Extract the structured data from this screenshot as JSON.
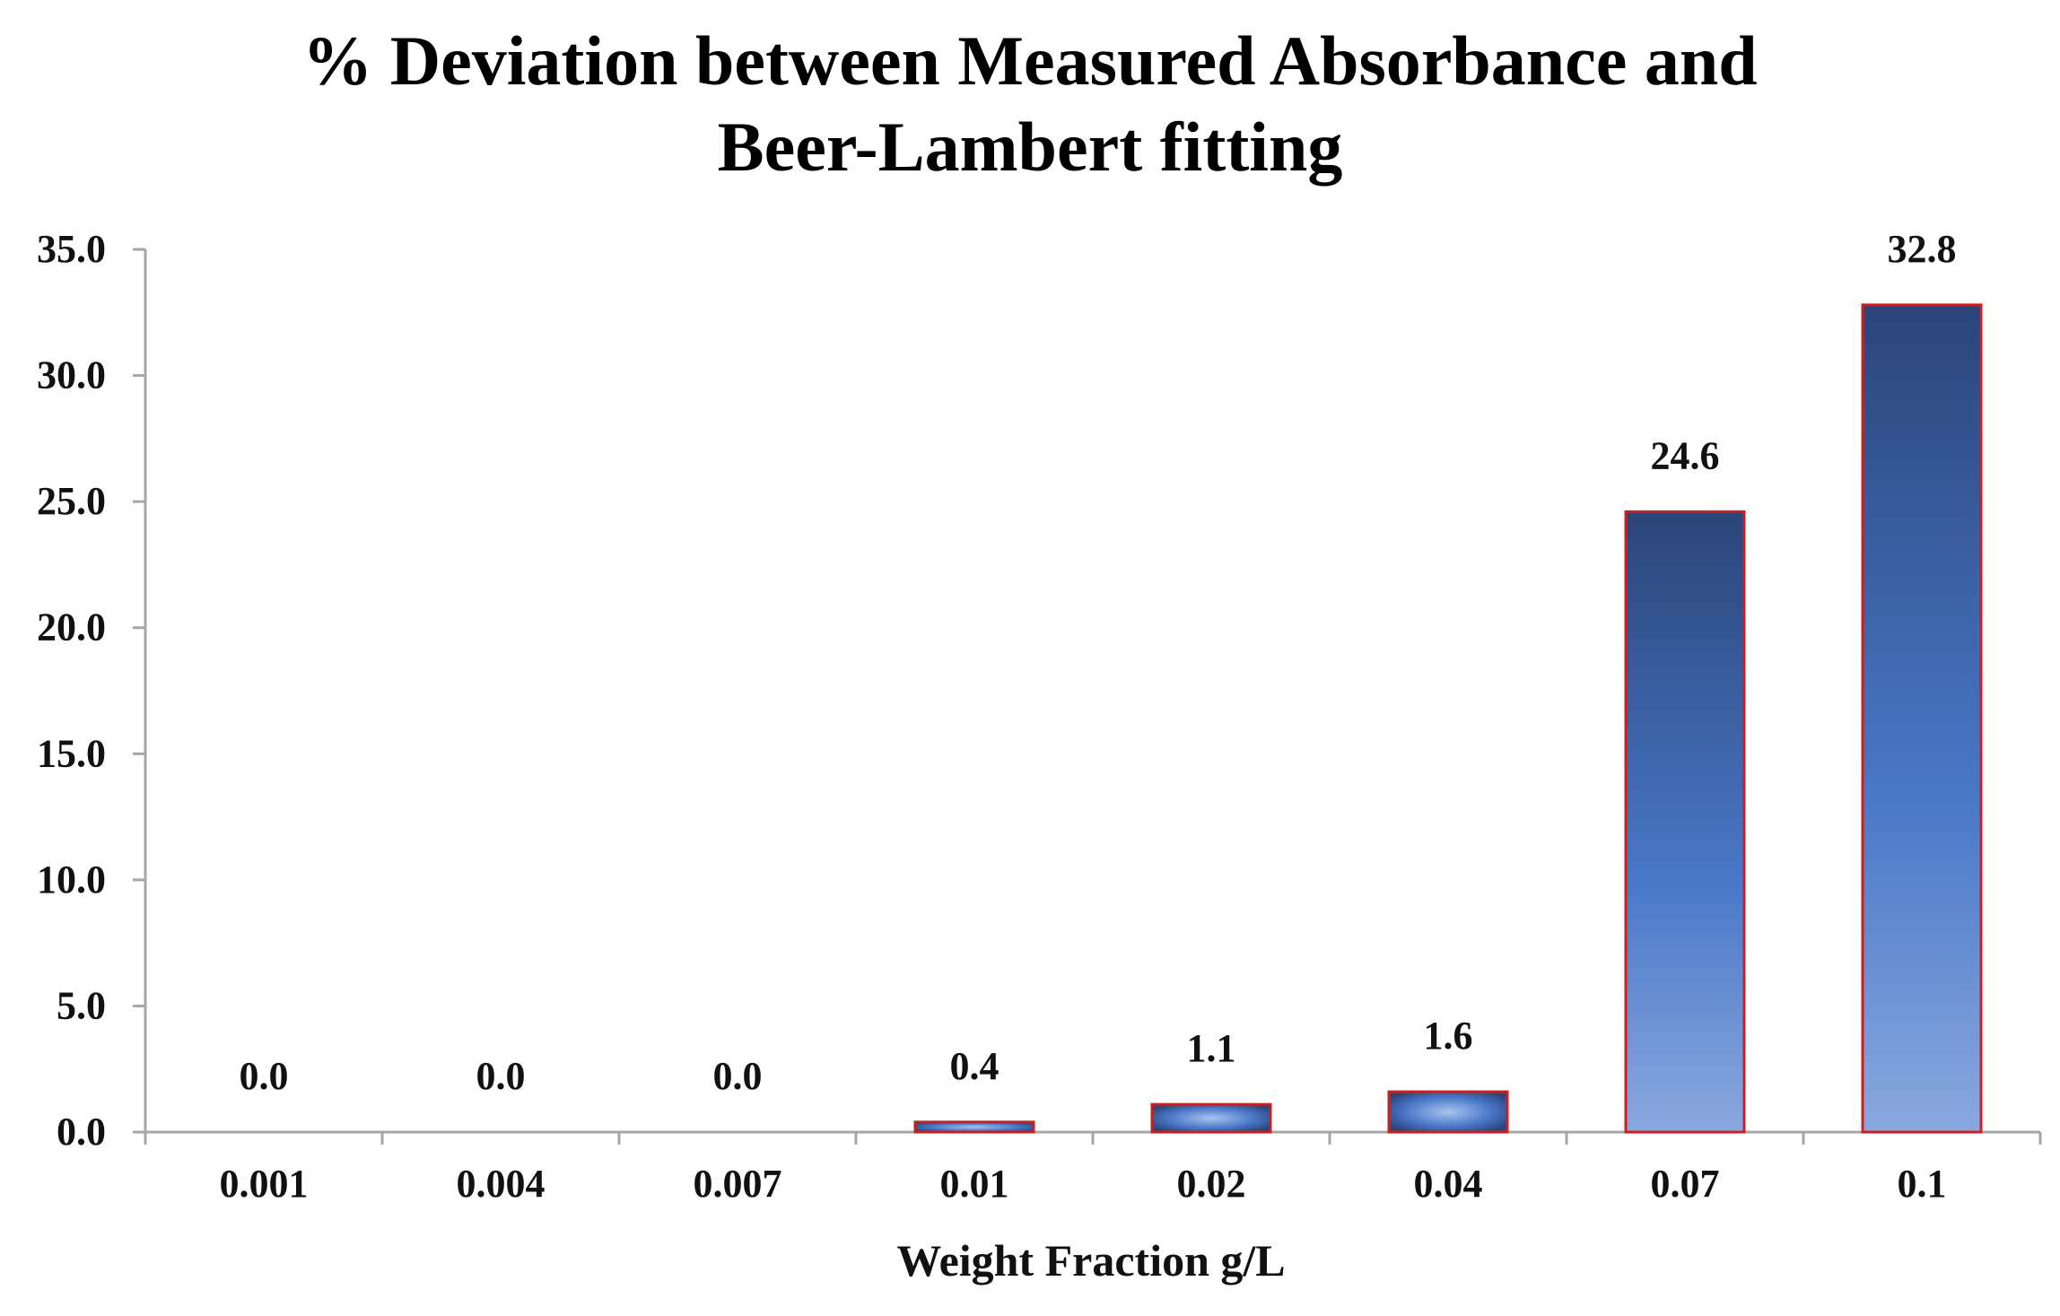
{
  "chart_data": {
    "type": "bar",
    "title_lines": [
      "% Deviation between Measured Absorbance and",
      "Beer-Lambert fitting"
    ],
    "categories": [
      "0.001",
      "0.004",
      "0.007",
      "0.01",
      "0.02",
      "0.04",
      "0.07",
      "0.1"
    ],
    "values": [
      0.0,
      0.0,
      0.0,
      0.4,
      1.1,
      1.6,
      24.6,
      32.8
    ],
    "data_labels": [
      "0.0",
      "0.0",
      "0.0",
      "0.4",
      "1.1",
      "1.6",
      "24.6",
      "32.8"
    ],
    "xlabel": "Weight Fraction g/L",
    "ylabel": "",
    "ylim": [
      0,
      35
    ],
    "yticks": [
      "0.0",
      "5.0",
      "10.0",
      "15.0",
      "20.0",
      "25.0",
      "30.0",
      "35.0"
    ],
    "grid": false,
    "legend": "none",
    "colors": {
      "bar_top": "#2b4579",
      "bar_bottom": "#8aa8de",
      "bar_mid": "#4a78c8",
      "bar_edge": "#cc1f1f",
      "axis": "#a6a6a6",
      "text": "#111111"
    }
  }
}
